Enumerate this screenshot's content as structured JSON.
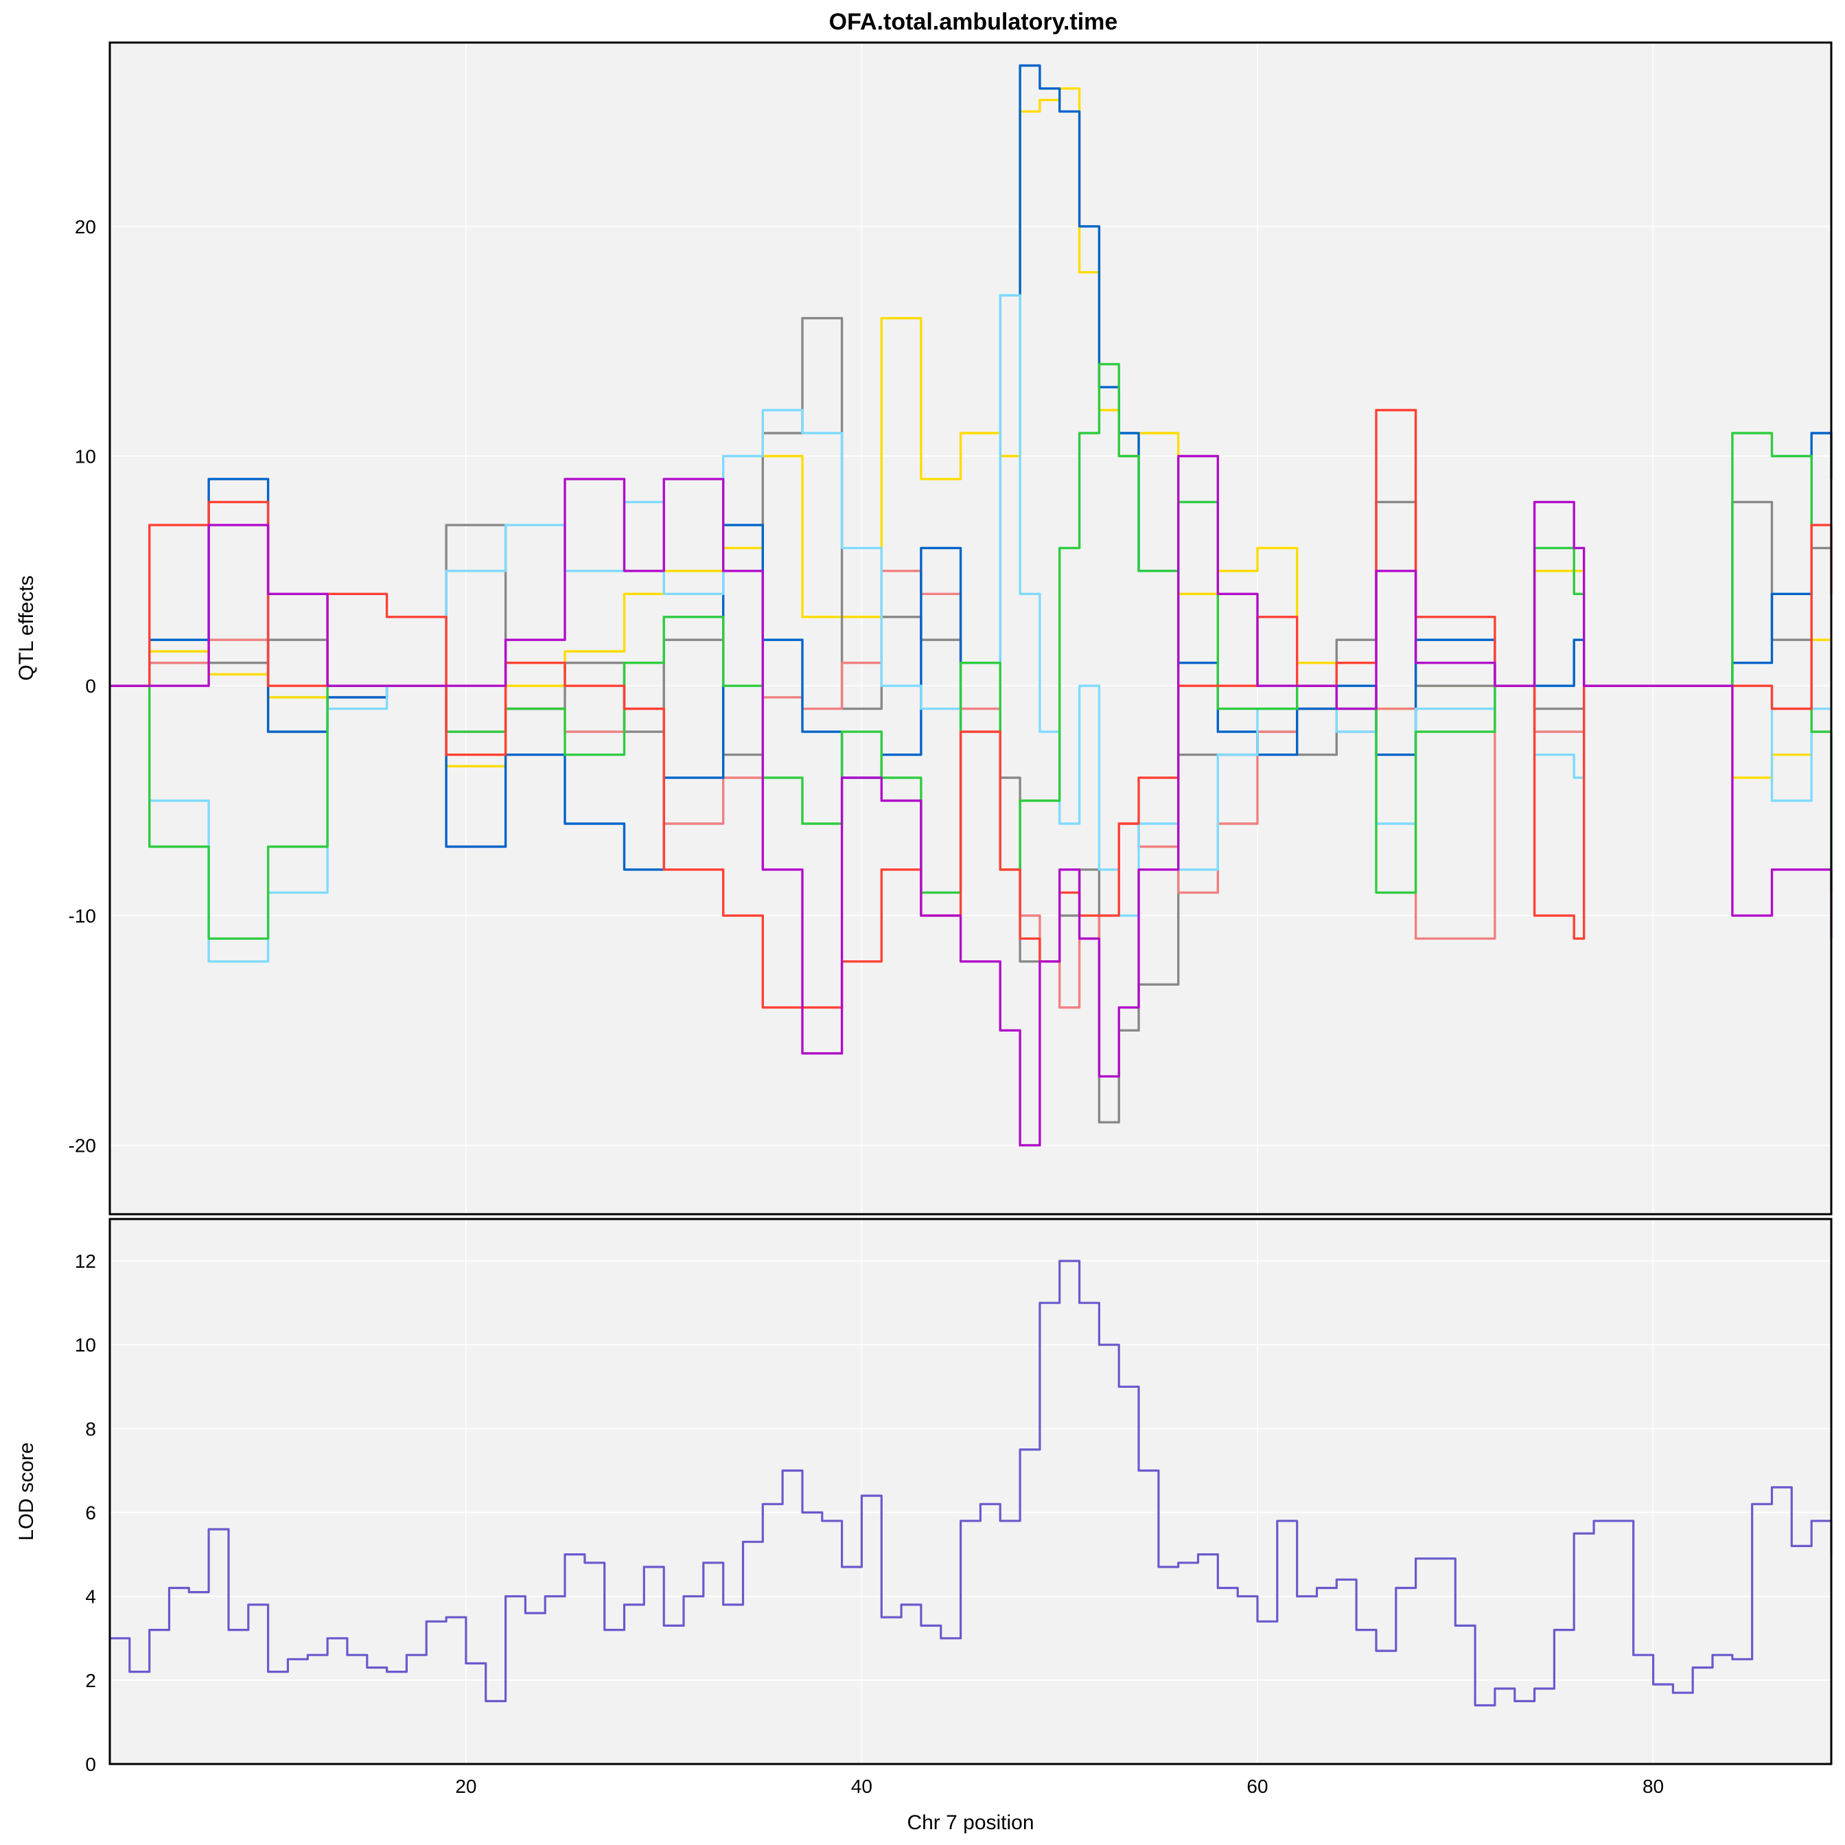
{
  "chart_data": [
    {
      "panel": "top",
      "type": "line",
      "title": "OFA.total.ambulatory.time",
      "xlabel": "",
      "ylabel": "QTL effects",
      "xlim": [
        2,
        89
      ],
      "ylim": [
        -23,
        28
      ],
      "xticks": [
        20,
        40,
        60,
        80
      ],
      "yticks": [
        -20,
        -10,
        0,
        10,
        20
      ],
      "grid": true,
      "legend": "none",
      "series": [
        {
          "color": "#FFDC00",
          "x": [
            2,
            4,
            7,
            10,
            13,
            16,
            19,
            22,
            25,
            28,
            30,
            33,
            35,
            37,
            39,
            41,
            43,
            45,
            47,
            48,
            49,
            50,
            51,
            52,
            53,
            54,
            56,
            58,
            60,
            62,
            64,
            66,
            68,
            72,
            74,
            76,
            76.5,
            81,
            84,
            86,
            88,
            89
          ],
          "y": [
            0,
            1.5,
            0.5,
            -0.5,
            0,
            0,
            -3.5,
            0,
            1.5,
            4,
            5,
            6,
            10,
            3,
            3,
            16,
            9,
            11,
            10,
            25,
            25.5,
            26,
            18,
            12,
            10,
            11,
            4,
            5,
            6,
            1,
            0,
            -1,
            0,
            0,
            5,
            5,
            0,
            0,
            -4,
            -3,
            2,
            2
          ]
        },
        {
          "color": "#888888",
          "x": [
            2,
            4,
            7,
            10,
            13,
            16,
            19,
            22,
            25,
            28,
            30,
            33,
            35,
            37,
            39,
            41,
            43,
            45,
            47,
            48,
            49,
            50,
            51,
            52,
            53,
            54,
            56,
            58,
            60,
            62,
            64,
            66,
            68,
            72,
            74,
            76,
            76.5,
            81,
            84,
            86,
            88,
            89
          ],
          "y": [
            0,
            1,
            1,
            2,
            0,
            0,
            7,
            -1,
            1,
            -2,
            2,
            -3,
            11,
            16,
            -1,
            3,
            2,
            -2,
            -4,
            -12,
            -12,
            -10,
            -8,
            -19,
            -15,
            -13,
            -3,
            -3,
            -2,
            -3,
            2,
            8,
            0,
            0,
            -1,
            -1,
            0,
            0,
            8,
            2,
            6,
            6
          ]
        },
        {
          "color": "#F08080",
          "x": [
            2,
            4,
            7,
            10,
            13,
            16,
            19,
            22,
            25,
            28,
            30,
            33,
            35,
            37,
            39,
            41,
            43,
            45,
            47,
            48,
            49,
            50,
            51,
            52,
            53,
            54,
            56,
            58,
            60,
            62,
            64,
            66,
            68,
            72,
            74,
            76,
            76.5,
            81,
            84,
            86,
            88,
            89
          ],
          "y": [
            0,
            1,
            2,
            -2,
            -0.5,
            0,
            -2,
            -1,
            -2,
            -1,
            -6,
            -4,
            -0.5,
            -1,
            1,
            5,
            4,
            -1,
            -8,
            -10,
            -12,
            -14,
            -11,
            -10,
            -6,
            -7,
            -9,
            -6,
            -2,
            -1,
            -2,
            -1,
            -11,
            0,
            -2,
            -2,
            0,
            0,
            0,
            -1,
            -2,
            -2
          ]
        },
        {
          "color": "#0064C9",
          "x": [
            2,
            4,
            7,
            10,
            13,
            16,
            19,
            22,
            25,
            28,
            30,
            33,
            35,
            37,
            39,
            41,
            43,
            45,
            47,
            48,
            49,
            50,
            51,
            52,
            53,
            54,
            56,
            58,
            60,
            62,
            64,
            66,
            68,
            72,
            74,
            76,
            76.5,
            81,
            84,
            86,
            88,
            89
          ],
          "y": [
            0,
            2,
            9,
            -2,
            -0.5,
            0,
            -7,
            -3,
            -6,
            -8,
            -4,
            7,
            2,
            -2,
            -4,
            -3,
            6,
            1,
            17,
            27,
            26,
            25,
            20,
            13,
            11,
            5,
            1,
            -2,
            -3,
            -1,
            0,
            -3,
            2,
            0,
            0,
            2,
            0,
            0,
            1,
            4,
            11,
            9
          ]
        },
        {
          "color": "#7FDBFF",
          "x": [
            2,
            4,
            7,
            10,
            13,
            16,
            19,
            22,
            25,
            28,
            30,
            33,
            35,
            37,
            39,
            41,
            43,
            45,
            47,
            48,
            49,
            50,
            51,
            52,
            53,
            54,
            56,
            58,
            60,
            62,
            64,
            66,
            68,
            72,
            74,
            76,
            76.5,
            81,
            84,
            86,
            88,
            89
          ],
          "y": [
            0,
            -5,
            -12,
            -9,
            -1,
            0,
            5,
            7,
            5,
            8,
            4,
            10,
            12,
            11,
            6,
            0,
            -1,
            1,
            17,
            4,
            -2,
            -6,
            0,
            -8,
            -10,
            -6,
            -8,
            -3,
            -1,
            0,
            -2,
            -6,
            -1,
            0,
            -3,
            -4,
            0,
            0,
            0,
            -5,
            -1,
            -1
          ]
        },
        {
          "color": "#2ECC40",
          "x": [
            2,
            4,
            7,
            10,
            13,
            16,
            19,
            22,
            25,
            28,
            30,
            33,
            35,
            37,
            39,
            41,
            43,
            45,
            47,
            48,
            49,
            50,
            51,
            52,
            53,
            54,
            56,
            58,
            60,
            62,
            64,
            66,
            68,
            72,
            74,
            76,
            76.5,
            81,
            84,
            86,
            88,
            89
          ],
          "y": [
            0,
            -7,
            -11,
            -7,
            0,
            0,
            -2,
            -1,
            -3,
            1,
            3,
            0,
            -4,
            -6,
            -2,
            -4,
            -9,
            1,
            -8,
            -5,
            -5,
            6,
            11,
            14,
            10,
            5,
            8,
            -1,
            -1,
            0,
            -1,
            -9,
            -2,
            0,
            6,
            4,
            0,
            0,
            11,
            10,
            -2,
            -9
          ]
        },
        {
          "color": "#FF4136",
          "x": [
            2,
            4,
            7,
            10,
            13,
            16,
            19,
            22,
            25,
            28,
            30,
            33,
            35,
            37,
            39,
            41,
            43,
            45,
            47,
            48,
            49,
            50,
            51,
            52,
            53,
            54,
            56,
            58,
            60,
            62,
            64,
            66,
            68,
            72,
            74,
            76,
            76.5,
            81,
            84,
            86,
            88,
            89
          ],
          "y": [
            0,
            7,
            8,
            0,
            4,
            3,
            -3,
            1,
            0,
            -1,
            -8,
            -10,
            -14,
            -14,
            -12,
            -8,
            -10,
            -2,
            -8,
            -11,
            -12,
            -9,
            -10,
            -10,
            -6,
            -4,
            0,
            0,
            3,
            0,
            1,
            12,
            3,
            0,
            -10,
            -11,
            0,
            0,
            0,
            -1,
            7,
            4
          ]
        },
        {
          "color": "#B10DC9",
          "x": [
            2,
            4,
            7,
            10,
            13,
            16,
            19,
            22,
            25,
            28,
            30,
            33,
            35,
            37,
            39,
            41,
            43,
            45,
            47,
            48,
            49,
            50,
            51,
            52,
            53,
            54,
            56,
            58,
            60,
            62,
            64,
            66,
            68,
            72,
            74,
            76,
            76.5,
            81,
            84,
            86,
            88,
            89
          ],
          "y": [
            0,
            0,
            7,
            4,
            0,
            0,
            0,
            2,
            9,
            5,
            9,
            5,
            -8,
            -16,
            -4,
            -5,
            -10,
            -12,
            -15,
            -20,
            -12,
            -8,
            -11,
            -17,
            -14,
            -8,
            10,
            4,
            0,
            0,
            -1,
            5,
            1,
            0,
            8,
            6,
            0,
            0,
            -10,
            -8,
            -8,
            -11
          ]
        }
      ]
    },
    {
      "panel": "bottom",
      "type": "line",
      "title": "",
      "xlabel": "Chr 7 position",
      "ylabel": "LOD score",
      "xlim": [
        2,
        89
      ],
      "ylim": [
        0,
        13
      ],
      "xticks": [
        20,
        40,
        60,
        80
      ],
      "yticks": [
        0,
        2,
        4,
        6,
        8,
        10,
        12
      ],
      "grid": true,
      "legend": "none",
      "series": [
        {
          "color": "#6A5ACD",
          "x": [
            2,
            3,
            4,
            5,
            6,
            7,
            8,
            9,
            10,
            11,
            12,
            13,
            14,
            15,
            16,
            17,
            18,
            19,
            20,
            21,
            22,
            23,
            24,
            25,
            26,
            27,
            28,
            29,
            30,
            31,
            32,
            33,
            34,
            35,
            36,
            37,
            38,
            39,
            40,
            41,
            42,
            43,
            44,
            45,
            46,
            47,
            48,
            49,
            50,
            51,
            52,
            53,
            54,
            55,
            56,
            57,
            58,
            59,
            60,
            61,
            62,
            63,
            64,
            65,
            66,
            67,
            68,
            69,
            70,
            71,
            72,
            73,
            74,
            75,
            76,
            77,
            78,
            79,
            80,
            81,
            82,
            83,
            84,
            85,
            86,
            87,
            88,
            89
          ],
          "y": [
            3,
            2.2,
            3.2,
            4.2,
            4.1,
            5.6,
            3.2,
            3.8,
            2.2,
            2.5,
            2.6,
            3,
            2.6,
            2.3,
            2.2,
            2.6,
            3.4,
            3.5,
            2.4,
            1.5,
            4,
            3.6,
            4,
            5,
            4.8,
            3.2,
            3.8,
            4.7,
            3.3,
            4,
            4.8,
            3.8,
            5.3,
            6.2,
            7,
            6,
            5.8,
            4.7,
            6.4,
            3.5,
            3.8,
            3.3,
            3,
            5.8,
            6.2,
            5.8,
            7.5,
            11,
            12,
            11,
            10,
            9,
            7,
            4.7,
            4.8,
            5,
            4.2,
            4,
            3.4,
            5.8,
            4,
            4.2,
            4.4,
            3.2,
            2.7,
            4.2,
            4.9,
            4.9,
            3.3,
            1.4,
            1.8,
            1.5,
            1.8,
            3.2,
            5.5,
            5.8,
            5.8,
            2.6,
            1.9,
            1.7,
            2.3,
            2.6,
            2.5,
            6.2,
            6.6,
            5.2,
            5.8,
            5
          ]
        }
      ]
    }
  ]
}
